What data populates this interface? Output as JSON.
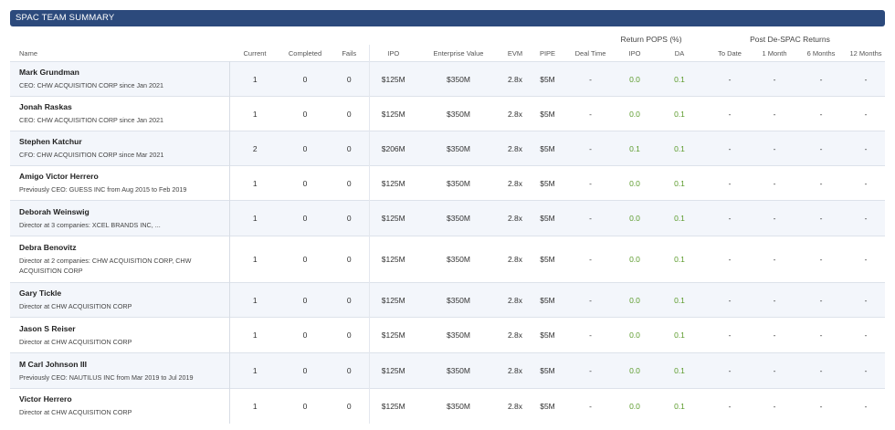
{
  "title": "SPAC TEAM SUMMARY",
  "groups": {
    "return_pops": "Return POPS (%)",
    "post_despac": "Post De-SPAC Returns"
  },
  "columns": {
    "name": "Name",
    "current": "Current",
    "completed": "Completed",
    "fails": "Fails",
    "ipo": "IPO",
    "ev": "Enterprise Value",
    "evm": "EVM",
    "pipe": "PIPE",
    "deal_time": "Deal Time",
    "pops_ipo": "IPO",
    "pops_da": "DA",
    "to_date": "To Date",
    "m1": "1 Month",
    "m6": "6 Months",
    "m12": "12 Months"
  },
  "rows": [
    {
      "name": "Mark Grundman",
      "role": "CEO: CHW ACQUISITION CORP since Jan 2021",
      "current": "1",
      "completed": "0",
      "fails": "0",
      "ipo": "$125M",
      "ev": "$350M",
      "evm": "2.8x",
      "pipe": "$5M",
      "deal_time": "-",
      "pops_ipo": "0.0",
      "pops_da": "0.1",
      "to_date": "-",
      "m1": "-",
      "m6": "-",
      "m12": "-"
    },
    {
      "name": "Jonah Raskas",
      "role": "CEO: CHW ACQUISITION CORP since Jan 2021",
      "current": "1",
      "completed": "0",
      "fails": "0",
      "ipo": "$125M",
      "ev": "$350M",
      "evm": "2.8x",
      "pipe": "$5M",
      "deal_time": "-",
      "pops_ipo": "0.0",
      "pops_da": "0.1",
      "to_date": "-",
      "m1": "-",
      "m6": "-",
      "m12": "-"
    },
    {
      "name": "Stephen Katchur",
      "role": "CFO: CHW ACQUISITION CORP since Mar 2021",
      "current": "2",
      "completed": "0",
      "fails": "0",
      "ipo": "$206M",
      "ev": "$350M",
      "evm": "2.8x",
      "pipe": "$5M",
      "deal_time": "-",
      "pops_ipo": "0.1",
      "pops_da": "0.1",
      "to_date": "-",
      "m1": "-",
      "m6": "-",
      "m12": "-"
    },
    {
      "name": "Amigo Victor Herrero",
      "role": "Previously CEO: GUESS INC from Aug 2015 to Feb 2019",
      "current": "1",
      "completed": "0",
      "fails": "0",
      "ipo": "$125M",
      "ev": "$350M",
      "evm": "2.8x",
      "pipe": "$5M",
      "deal_time": "-",
      "pops_ipo": "0.0",
      "pops_da": "0.1",
      "to_date": "-",
      "m1": "-",
      "m6": "-",
      "m12": "-"
    },
    {
      "name": "Deborah Weinswig",
      "role": "Director at 3 companies: XCEL BRANDS INC, ...",
      "current": "1",
      "completed": "0",
      "fails": "0",
      "ipo": "$125M",
      "ev": "$350M",
      "evm": "2.8x",
      "pipe": "$5M",
      "deal_time": "-",
      "pops_ipo": "0.0",
      "pops_da": "0.1",
      "to_date": "-",
      "m1": "-",
      "m6": "-",
      "m12": "-"
    },
    {
      "name": "Debra Benovitz",
      "role": "Director at 2 companies: CHW ACQUISITION CORP, CHW ACQUISITION CORP",
      "current": "1",
      "completed": "0",
      "fails": "0",
      "ipo": "$125M",
      "ev": "$350M",
      "evm": "2.8x",
      "pipe": "$5M",
      "deal_time": "-",
      "pops_ipo": "0.0",
      "pops_da": "0.1",
      "to_date": "-",
      "m1": "-",
      "m6": "-",
      "m12": "-"
    },
    {
      "name": "Gary Tickle",
      "role": "Director at CHW ACQUISITION CORP",
      "current": "1",
      "completed": "0",
      "fails": "0",
      "ipo": "$125M",
      "ev": "$350M",
      "evm": "2.8x",
      "pipe": "$5M",
      "deal_time": "-",
      "pops_ipo": "0.0",
      "pops_da": "0.1",
      "to_date": "-",
      "m1": "-",
      "m6": "-",
      "m12": "-"
    },
    {
      "name": "Jason S Reiser",
      "role": "Director at CHW ACQUISITION CORP",
      "current": "1",
      "completed": "0",
      "fails": "0",
      "ipo": "$125M",
      "ev": "$350M",
      "evm": "2.8x",
      "pipe": "$5M",
      "deal_time": "-",
      "pops_ipo": "0.0",
      "pops_da": "0.1",
      "to_date": "-",
      "m1": "-",
      "m6": "-",
      "m12": "-"
    },
    {
      "name": "M Carl Johnson III",
      "role": "Previously CEO: NAUTILUS INC from Mar 2019 to Jul 2019",
      "current": "1",
      "completed": "0",
      "fails": "0",
      "ipo": "$125M",
      "ev": "$350M",
      "evm": "2.8x",
      "pipe": "$5M",
      "deal_time": "-",
      "pops_ipo": "0.0",
      "pops_da": "0.1",
      "to_date": "-",
      "m1": "-",
      "m6": "-",
      "m12": "-"
    },
    {
      "name": "Victor Herrero",
      "role": "Director at CHW ACQUISITION CORP",
      "current": "1",
      "completed": "0",
      "fails": "0",
      "ipo": "$125M",
      "ev": "$350M",
      "evm": "2.8x",
      "pipe": "$5M",
      "deal_time": "-",
      "pops_ipo": "0.0",
      "pops_da": "0.1",
      "to_date": "-",
      "m1": "-",
      "m6": "-",
      "m12": "-"
    }
  ]
}
